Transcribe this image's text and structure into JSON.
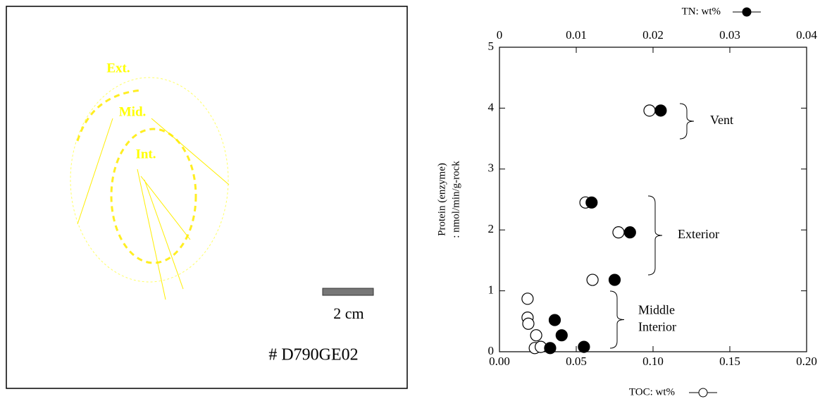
{
  "sample_image": {
    "zones": [
      "Ext.",
      "Mid.",
      "Int."
    ],
    "scale_label": "2 cm",
    "sample_id": "# D790GE02"
  },
  "chart_data": {
    "type": "scatter",
    "y_label": [
      "Protein (enzyme)",
      ": nmol/min/g-rock"
    ],
    "xlim": [
      0,
      0.2
    ],
    "xticks": [
      {
        "value": 0,
        "label": "0.00"
      },
      {
        "value": 0.05,
        "label": "0.05"
      },
      {
        "value": 0.1,
        "label": "0.10"
      },
      {
        "value": 0.15,
        "label": "0.15"
      },
      {
        "value": 0.2,
        "label": "0.20"
      }
    ],
    "x2lim": [
      0,
      0.04
    ],
    "x2ticks": [
      0,
      0.01,
      0.02,
      0.03,
      0.04
    ],
    "ylim": [
      0,
      5
    ],
    "yticks": [
      0,
      1,
      2,
      3,
      4,
      5
    ],
    "series": [
      {
        "name": "TOC: wt%",
        "marker": "open",
        "x": [
          0.0977,
          0.056,
          0.0775,
          0.0606,
          0.0183,
          0.0183,
          0.0188,
          0.0239,
          0.023,
          0.0269
        ],
        "values": [
          3.96,
          2.45,
          1.96,
          1.18,
          0.87,
          0.56,
          0.46,
          0.27,
          0.06,
          0.08
        ]
      },
      {
        "name": "TN: wt%",
        "marker": "filled",
        "axis": "x2",
        "x": [
          0.021,
          0.012,
          0.017,
          0.015,
          0.0072,
          0.0081,
          0.0066,
          0.011
        ],
        "values": [
          3.96,
          2.45,
          1.96,
          1.18,
          0.52,
          0.27,
          0.06,
          0.08
        ]
      }
    ],
    "annotations": [
      [
        "Vent"
      ],
      [
        "Exterior"
      ],
      [
        "Middle",
        "Interior"
      ]
    ]
  }
}
